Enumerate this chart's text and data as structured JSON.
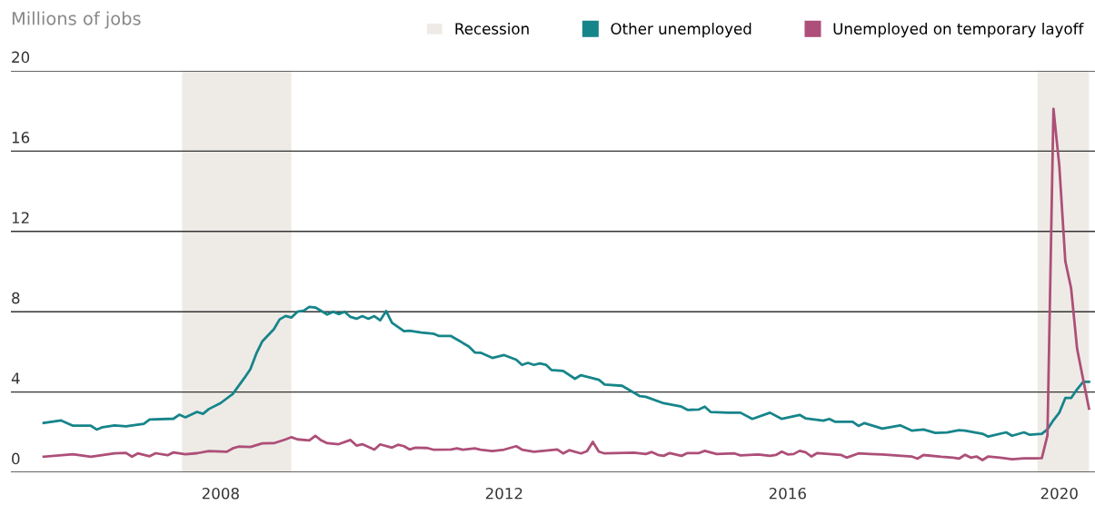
{
  "chart_data": {
    "type": "line",
    "ylabel": "Millions of jobs",
    "xlim": [
      "2005-07-16",
      "2020-11-01"
    ],
    "xticks": [
      {
        "value": "2008-07-01",
        "label": "2008"
      },
      {
        "value": "2012-07-01",
        "label": "2012"
      },
      {
        "value": "2016-07-01",
        "label": "2016"
      },
      {
        "value": "2020-05-01",
        "label": "2020"
      }
    ],
    "ylim": [
      0,
      20
    ],
    "yticks": [
      0,
      4,
      8,
      12,
      16,
      20
    ],
    "grid": "y",
    "legend": "top right",
    "marker": "none",
    "line_style": "solid",
    "bands": [
      {
        "axis": "x",
        "from": "2007-12-15",
        "to": "2009-06-30",
        "label": "Recession",
        "color": "#eeebe6"
      },
      {
        "axis": "x",
        "from": "2020-01-10",
        "to": "2020-10-01",
        "color": "#eeebe6"
      }
    ],
    "series": [
      {
        "name": "Other unemployed",
        "color": "#16858a",
        "x": [
          "2006-01",
          "2006-04",
          "2006-06",
          "2006-09",
          "2006-10",
          "2006-11",
          "2007-01",
          "2007-03",
          "2007-06",
          "2007-07",
          "2007-11",
          "2007-12",
          "2008-01",
          "2008-03",
          "2008-04",
          "2008-05",
          "2008-07",
          "2008-09",
          "2008-11",
          "2008-12",
          "2009-01",
          "2009-02",
          "2009-04",
          "2009-05",
          "2009-06",
          "2009-07",
          "2009-08",
          "2009-09",
          "2009-10",
          "2009-11",
          "2010-01",
          "2010-02",
          "2010-03",
          "2010-04",
          "2010-05",
          "2010-06",
          "2010-07",
          "2010-08",
          "2010-09",
          "2010-10",
          "2010-11",
          "2010-12",
          "2011-02",
          "2011-03",
          "2011-05",
          "2011-07",
          "2011-08",
          "2011-10",
          "2012-01",
          "2012-02",
          "2012-03",
          "2012-05",
          "2012-07",
          "2012-09",
          "2012-10",
          "2012-11",
          "2012-12",
          "2013-01",
          "2013-02",
          "2013-03",
          "2013-05",
          "2013-07",
          "2013-08",
          "2013-11",
          "2013-12",
          "2014-03",
          "2014-06",
          "2014-07",
          "2014-10",
          "2015-01",
          "2015-02",
          "2015-04",
          "2015-05",
          "2015-06",
          "2015-09",
          "2015-11",
          "2016-01",
          "2016-04",
          "2016-06",
          "2016-09",
          "2016-10",
          "2017-01",
          "2017-02",
          "2017-03",
          "2017-06",
          "2017-07",
          "2017-08",
          "2017-11",
          "2018-02",
          "2018-04",
          "2018-06",
          "2018-08",
          "2018-10",
          "2018-12",
          "2019-01",
          "2019-04",
          "2019-05",
          "2019-08",
          "2019-09",
          "2019-11",
          "2019-12",
          "2020-02",
          "2020-03",
          "2020-04",
          "2020-05",
          "2020-06",
          "2020-07",
          "2020-08",
          "2020-09",
          "2020-10"
        ],
        "values": [
          2.46,
          2.58,
          2.32,
          2.32,
          2.13,
          2.25,
          2.34,
          2.29,
          2.42,
          2.63,
          2.67,
          2.87,
          2.74,
          3.01,
          2.91,
          3.15,
          3.45,
          3.9,
          4.71,
          5.14,
          5.92,
          6.53,
          7.13,
          7.62,
          7.79,
          7.71,
          8.0,
          8.05,
          8.24,
          8.21,
          7.86,
          8.0,
          7.88,
          8.0,
          7.74,
          7.65,
          7.78,
          7.65,
          7.78,
          7.57,
          8.03,
          7.45,
          7.03,
          7.05,
          6.96,
          6.91,
          6.79,
          6.79,
          6.27,
          5.97,
          5.96,
          5.7,
          5.84,
          5.61,
          5.35,
          5.45,
          5.35,
          5.42,
          5.36,
          5.1,
          5.05,
          4.66,
          4.84,
          4.61,
          4.37,
          4.31,
          3.79,
          3.76,
          3.44,
          3.27,
          3.11,
          3.13,
          3.27,
          3.0,
          2.97,
          2.97,
          2.66,
          2.97,
          2.66,
          2.86,
          2.69,
          2.57,
          2.66,
          2.52,
          2.52,
          2.31,
          2.45,
          2.18,
          2.34,
          2.08,
          2.13,
          1.96,
          1.99,
          2.1,
          2.08,
          1.92,
          1.78,
          1.99,
          1.82,
          1.99,
          1.87,
          1.92,
          2.14,
          2.6,
          2.97,
          3.7,
          3.7,
          4.14,
          4.51,
          4.51
        ]
      },
      {
        "name": "Unemployed on temporary layoff",
        "color": "#ad4f78",
        "x": [
          "2006-01",
          "2006-06",
          "2006-09",
          "2007-01",
          "2007-03",
          "2007-04",
          "2007-05",
          "2007-07",
          "2007-08",
          "2007-10",
          "2007-11",
          "2008-01",
          "2008-03",
          "2008-05",
          "2008-08",
          "2008-09",
          "2008-10",
          "2008-12",
          "2009-02",
          "2009-04",
          "2009-06",
          "2009-07",
          "2009-08",
          "2009-10",
          "2009-11",
          "2009-12",
          "2010-01",
          "2010-03",
          "2010-05",
          "2010-06",
          "2010-07",
          "2010-09",
          "2010-10",
          "2010-12",
          "2011-01",
          "2011-02",
          "2011-03",
          "2011-04",
          "2011-06",
          "2011-07",
          "2011-10",
          "2011-11",
          "2011-12",
          "2012-02",
          "2012-03",
          "2012-05",
          "2012-07",
          "2012-09",
          "2012-10",
          "2012-12",
          "2013-02",
          "2013-04",
          "2013-05",
          "2013-06",
          "2013-08",
          "2013-09",
          "2013-10",
          "2013-11",
          "2013-12",
          "2014-05",
          "2014-07",
          "2014-08",
          "2014-09",
          "2014-10",
          "2014-11",
          "2015-01",
          "2015-02",
          "2015-04",
          "2015-05",
          "2015-07",
          "2015-10",
          "2015-11",
          "2016-02",
          "2016-04",
          "2016-05",
          "2016-06",
          "2016-07",
          "2016-08",
          "2016-09",
          "2016-10",
          "2016-11",
          "2016-12",
          "2017-02",
          "2017-04",
          "2017-05",
          "2017-07",
          "2017-09",
          "2017-11",
          "2018-04",
          "2018-05",
          "2018-06",
          "2018-09",
          "2018-11",
          "2018-12",
          "2019-01",
          "2019-02",
          "2019-03",
          "2019-04",
          "2019-05",
          "2019-07",
          "2019-09",
          "2019-11",
          "2020-01",
          "2020-02",
          "2020-03",
          "2020-04",
          "2020-05",
          "2020-06",
          "2020-07",
          "2020-08",
          "2020-09",
          "2020-10"
        ],
        "values": [
          0.78,
          0.9,
          0.78,
          0.94,
          0.97,
          0.78,
          0.94,
          0.8,
          0.95,
          0.85,
          0.99,
          0.9,
          0.95,
          1.06,
          1.02,
          1.19,
          1.28,
          1.26,
          1.44,
          1.45,
          1.64,
          1.75,
          1.64,
          1.59,
          1.82,
          1.59,
          1.45,
          1.4,
          1.61,
          1.33,
          1.4,
          1.13,
          1.39,
          1.23,
          1.37,
          1.3,
          1.14,
          1.23,
          1.21,
          1.13,
          1.14,
          1.19,
          1.13,
          1.19,
          1.13,
          1.06,
          1.13,
          1.3,
          1.13,
          1.02,
          1.08,
          1.14,
          0.94,
          1.1,
          0.94,
          1.05,
          1.52,
          1.03,
          0.94,
          0.98,
          0.91,
          1.01,
          0.87,
          0.82,
          0.96,
          0.82,
          0.96,
          0.96,
          1.07,
          0.91,
          0.94,
          0.84,
          0.89,
          0.82,
          0.86,
          1.03,
          0.89,
          0.91,
          1.07,
          1.0,
          0.79,
          0.96,
          0.91,
          0.87,
          0.73,
          0.94,
          0.91,
          0.89,
          0.79,
          0.68,
          0.86,
          0.77,
          0.73,
          0.68,
          0.87,
          0.73,
          0.79,
          0.61,
          0.79,
          0.73,
          0.65,
          0.7,
          0.7,
          0.71,
          1.84,
          18.11,
          15.28,
          10.52,
          9.16,
          6.14,
          4.63,
          3.17
        ]
      }
    ]
  }
}
